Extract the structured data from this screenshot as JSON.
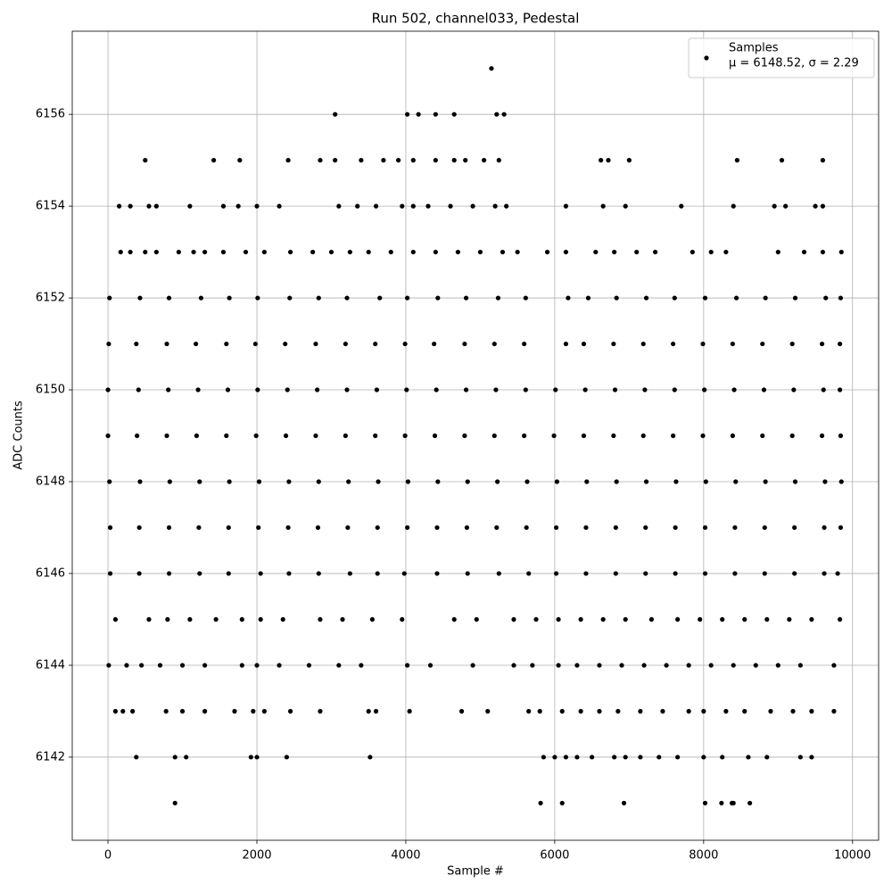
{
  "chart_data": {
    "type": "scatter",
    "title": "Run 502, channel033, Pedestal",
    "x_label": "Sample #",
    "y_label": "ADC Counts",
    "xlim": [
      -480,
      10350
    ],
    "ylim": [
      6140.19,
      6157.81
    ],
    "xticks": [
      0,
      2000,
      4000,
      6000,
      8000,
      10000
    ],
    "yticks": [
      6142,
      6144,
      6146,
      6148,
      6150,
      6152,
      6154,
      6156
    ],
    "grid": true,
    "legend": "upper right",
    "series": [
      {
        "name": "Samples",
        "legend_note": "μ = 6148.52, σ = 2.29",
        "color": "#000000",
        "x": [
          5150,
          3050,
          4020,
          4170,
          4400,
          4650,
          5220,
          5320,
          500,
          1420,
          1770,
          2420,
          2850,
          3050,
          3400,
          3700,
          3900,
          4100,
          4400,
          4650,
          4800,
          5050,
          5250,
          6620,
          6720,
          7000,
          8450,
          9050,
          9600,
          150,
          300,
          550,
          650,
          1100,
          1550,
          1750,
          2000,
          2300,
          3100,
          3350,
          3600,
          3950,
          4100,
          4300,
          4600,
          4900,
          5200,
          5350,
          6150,
          6650,
          6950,
          7700,
          8400,
          8950,
          9100,
          9500,
          9600,
          170,
          300,
          500,
          650,
          950,
          1150,
          1300,
          1550,
          1850,
          2100,
          2450,
          2750,
          3000,
          3250,
          3500,
          3800,
          4100,
          4400,
          4700,
          5000,
          5300,
          5500,
          5900,
          6150,
          6550,
          6800,
          7100,
          7350,
          7850,
          8100,
          8300,
          9000,
          9350,
          9600,
          9850,
          20,
          430,
          820,
          1250,
          1630,
          2010,
          2440,
          2830,
          3210,
          3650,
          4020,
          4430,
          4810,
          5240,
          5610,
          6180,
          6450,
          6830,
          7230,
          7610,
          8020,
          8440,
          8830,
          9230,
          9640,
          9840,
          10,
          380,
          790,
          1180,
          1590,
          1980,
          2380,
          2790,
          3190,
          3590,
          3990,
          4380,
          4790,
          5190,
          5590,
          6150,
          6390,
          6790,
          7190,
          7590,
          7990,
          8390,
          8790,
          9190,
          9590,
          9830,
          0,
          410,
          810,
          1210,
          1610,
          2010,
          2410,
          2810,
          3210,
          3610,
          4010,
          4410,
          4810,
          5210,
          5610,
          6010,
          6410,
          6810,
          7210,
          7610,
          8010,
          8410,
          8810,
          9210,
          9610,
          9830,
          0,
          390,
          790,
          1190,
          1590,
          1990,
          2390,
          2790,
          3190,
          3590,
          3990,
          4390,
          4790,
          5190,
          5590,
          5990,
          6390,
          6790,
          7190,
          7590,
          7990,
          8390,
          8790,
          9190,
          9590,
          9840,
          20,
          430,
          830,
          1230,
          1630,
          2030,
          2430,
          2830,
          3230,
          3630,
          4030,
          4430,
          4830,
          5230,
          5630,
          6030,
          6430,
          6830,
          7230,
          7630,
          8030,
          8430,
          8830,
          9230,
          9630,
          9850,
          30,
          420,
          820,
          1220,
          1620,
          2020,
          2420,
          2820,
          3220,
          3620,
          4020,
          4420,
          4820,
          5220,
          5620,
          6020,
          6420,
          6820,
          7220,
          7620,
          8020,
          8420,
          8820,
          9220,
          9620,
          9840,
          30,
          420,
          820,
          1230,
          1620,
          2050,
          2430,
          2830,
          3250,
          3620,
          3980,
          4420,
          4830,
          5250,
          5650,
          6020,
          6420,
          6820,
          7220,
          7620,
          8020,
          8420,
          8820,
          9220,
          9620,
          9800,
          100,
          550,
          800,
          1100,
          1450,
          1800,
          2050,
          2350,
          2850,
          3150,
          3550,
          3950,
          4650,
          4950,
          5450,
          5750,
          6050,
          6350,
          6650,
          6950,
          7300,
          7650,
          7950,
          8250,
          8550,
          8850,
          9150,
          9450,
          9830,
          10,
          250,
          450,
          700,
          1000,
          1300,
          1800,
          2000,
          2300,
          2700,
          3100,
          3400,
          4020,
          4330,
          4900,
          5450,
          5700,
          6050,
          6300,
          6600,
          6900,
          7200,
          7500,
          7800,
          8100,
          8400,
          8700,
          9000,
          9300,
          9750,
          100,
          200,
          330,
          780,
          1000,
          1300,
          1700,
          1950,
          2100,
          2450,
          2850,
          3500,
          3600,
          4050,
          4750,
          5100,
          5650,
          5800,
          6100,
          6350,
          6600,
          6850,
          7150,
          7450,
          7800,
          8000,
          8300,
          8550,
          8900,
          9200,
          9450,
          9750,
          380,
          900,
          1050,
          1920,
          2000,
          2400,
          3520,
          5850,
          6000,
          6150,
          6300,
          6500,
          6800,
          6950,
          7150,
          7400,
          7650,
          8000,
          8250,
          8600,
          8850,
          9300,
          9450,
          900,
          5810,
          6100,
          6930,
          8020,
          8240,
          8380,
          8400,
          8620
        ],
        "values": [
          6157,
          6156,
          6156,
          6156,
          6156,
          6156,
          6156,
          6156,
          6155,
          6155,
          6155,
          6155,
          6155,
          6155,
          6155,
          6155,
          6155,
          6155,
          6155,
          6155,
          6155,
          6155,
          6155,
          6155,
          6155,
          6155,
          6155,
          6155,
          6155,
          6154,
          6154,
          6154,
          6154,
          6154,
          6154,
          6154,
          6154,
          6154,
          6154,
          6154,
          6154,
          6154,
          6154,
          6154,
          6154,
          6154,
          6154,
          6154,
          6154,
          6154,
          6154,
          6154,
          6154,
          6154,
          6154,
          6154,
          6154,
          6153,
          6153,
          6153,
          6153,
          6153,
          6153,
          6153,
          6153,
          6153,
          6153,
          6153,
          6153,
          6153,
          6153,
          6153,
          6153,
          6153,
          6153,
          6153,
          6153,
          6153,
          6153,
          6153,
          6153,
          6153,
          6153,
          6153,
          6153,
          6153,
          6153,
          6153,
          6153,
          6153,
          6153,
          6153,
          6152,
          6152,
          6152,
          6152,
          6152,
          6152,
          6152,
          6152,
          6152,
          6152,
          6152,
          6152,
          6152,
          6152,
          6152,
          6152,
          6152,
          6152,
          6152,
          6152,
          6152,
          6152,
          6152,
          6152,
          6152,
          6152,
          6151,
          6151,
          6151,
          6151,
          6151,
          6151,
          6151,
          6151,
          6151,
          6151,
          6151,
          6151,
          6151,
          6151,
          6151,
          6151,
          6151,
          6151,
          6151,
          6151,
          6151,
          6151,
          6151,
          6151,
          6151,
          6151,
          6150,
          6150,
          6150,
          6150,
          6150,
          6150,
          6150,
          6150,
          6150,
          6150,
          6150,
          6150,
          6150,
          6150,
          6150,
          6150,
          6150,
          6150,
          6150,
          6150,
          6150,
          6150,
          6150,
          6150,
          6150,
          6150,
          6149,
          6149,
          6149,
          6149,
          6149,
          6149,
          6149,
          6149,
          6149,
          6149,
          6149,
          6149,
          6149,
          6149,
          6149,
          6149,
          6149,
          6149,
          6149,
          6149,
          6149,
          6149,
          6149,
          6149,
          6149,
          6149,
          6148,
          6148,
          6148,
          6148,
          6148,
          6148,
          6148,
          6148,
          6148,
          6148,
          6148,
          6148,
          6148,
          6148,
          6148,
          6148,
          6148,
          6148,
          6148,
          6148,
          6148,
          6148,
          6148,
          6148,
          6148,
          6148,
          6147,
          6147,
          6147,
          6147,
          6147,
          6147,
          6147,
          6147,
          6147,
          6147,
          6147,
          6147,
          6147,
          6147,
          6147,
          6147,
          6147,
          6147,
          6147,
          6147,
          6147,
          6147,
          6147,
          6147,
          6147,
          6147,
          6146,
          6146,
          6146,
          6146,
          6146,
          6146,
          6146,
          6146,
          6146,
          6146,
          6146,
          6146,
          6146,
          6146,
          6146,
          6146,
          6146,
          6146,
          6146,
          6146,
          6146,
          6146,
          6146,
          6146,
          6146,
          6146,
          6145,
          6145,
          6145,
          6145,
          6145,
          6145,
          6145,
          6145,
          6145,
          6145,
          6145,
          6145,
          6145,
          6145,
          6145,
          6145,
          6145,
          6145,
          6145,
          6145,
          6145,
          6145,
          6145,
          6145,
          6145,
          6145,
          6145,
          6145,
          6145,
          6144,
          6144,
          6144,
          6144,
          6144,
          6144,
          6144,
          6144,
          6144,
          6144,
          6144,
          6144,
          6144,
          6144,
          6144,
          6144,
          6144,
          6144,
          6144,
          6144,
          6144,
          6144,
          6144,
          6144,
          6144,
          6144,
          6144,
          6144,
          6144,
          6144,
          6143,
          6143,
          6143,
          6143,
          6143,
          6143,
          6143,
          6143,
          6143,
          6143,
          6143,
          6143,
          6143,
          6143,
          6143,
          6143,
          6143,
          6143,
          6143,
          6143,
          6143,
          6143,
          6143,
          6143,
          6143,
          6143,
          6143,
          6143,
          6143,
          6143,
          6143,
          6143,
          6142,
          6142,
          6142,
          6142,
          6142,
          6142,
          6142,
          6142,
          6142,
          6142,
          6142,
          6142,
          6142,
          6142,
          6142,
          6142,
          6142,
          6142,
          6142,
          6142,
          6142,
          6142,
          6142,
          6141,
          6141,
          6141,
          6141,
          6141,
          6141,
          6141,
          6141,
          6141
        ]
      }
    ]
  }
}
